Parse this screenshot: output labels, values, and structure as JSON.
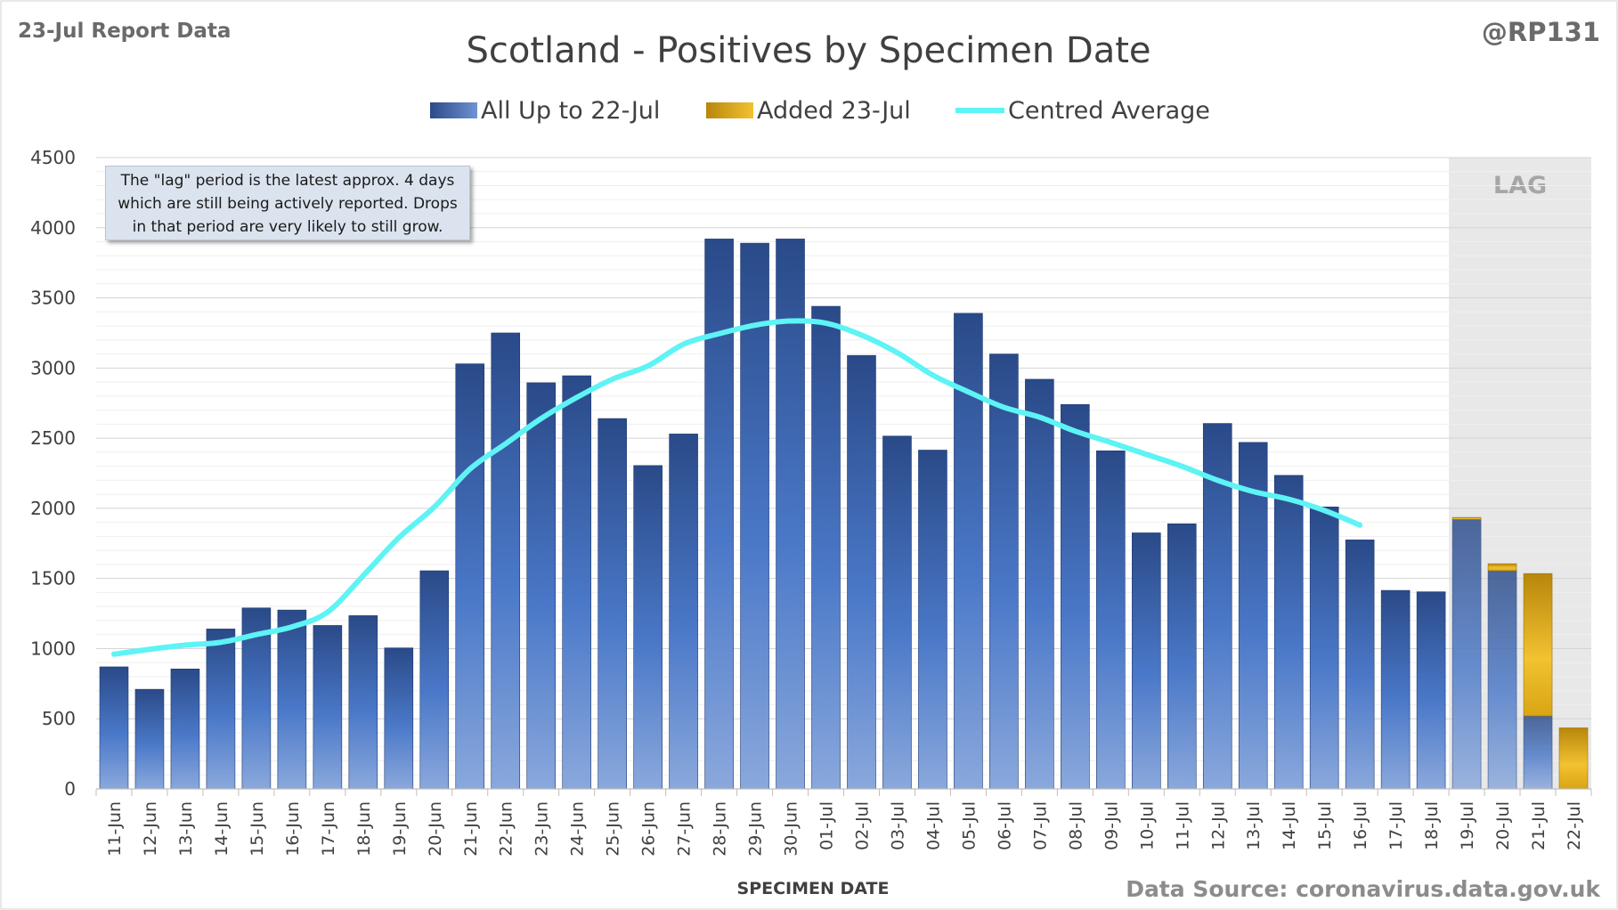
{
  "header": {
    "report_label": "23-Jul Report Data",
    "author": "@RP131"
  },
  "footer": {
    "source": "Data Source: coronavirus.data.gov.uk"
  },
  "annotation": {
    "lines": [
      "The \"lag\" period is the latest approx. 4 days",
      "which are still being actively reported.  Drops",
      "in that period are very likely to still grow."
    ]
  },
  "chart_data": {
    "type": "bar",
    "stacked": true,
    "title": "Scotland - Positives by Specimen Date",
    "xlabel": "SPECIMEN DATE",
    "ylabel": "",
    "ylim": [
      0,
      4500
    ],
    "yticks": [
      0,
      500,
      1000,
      1500,
      2000,
      2500,
      3000,
      3500,
      4000,
      4500
    ],
    "grid": true,
    "legend_position": "top",
    "lag_label": "LAG",
    "lag_categories": [
      "19-Jul",
      "20-Jul",
      "21-Jul",
      "22-Jul"
    ],
    "categories": [
      "11-Jun",
      "12-Jun",
      "13-Jun",
      "14-Jun",
      "15-Jun",
      "16-Jun",
      "17-Jun",
      "18-Jun",
      "19-Jun",
      "20-Jun",
      "21-Jun",
      "22-Jun",
      "23-Jun",
      "24-Jun",
      "25-Jun",
      "26-Jun",
      "27-Jun",
      "28-Jun",
      "29-Jun",
      "30-Jun",
      "01-Jul",
      "02-Jul",
      "03-Jul",
      "04-Jul",
      "05-Jul",
      "06-Jul",
      "07-Jul",
      "08-Jul",
      "09-Jul",
      "10-Jul",
      "11-Jul",
      "12-Jul",
      "13-Jul",
      "14-Jul",
      "15-Jul",
      "16-Jul",
      "17-Jul",
      "18-Jul",
      "19-Jul",
      "20-Jul",
      "21-Jul",
      "22-Jul"
    ],
    "series": [
      {
        "name": "All Up to 22-Jul",
        "color": "#2e4f8f",
        "values": [
          870,
          710,
          855,
          1140,
          1290,
          1275,
          1165,
          1235,
          1005,
          1555,
          3030,
          3250,
          2895,
          2945,
          2640,
          2305,
          2530,
          3920,
          3890,
          3920,
          3440,
          3090,
          2515,
          2415,
          3390,
          3100,
          2920,
          2740,
          2410,
          1825,
          1890,
          2605,
          2470,
          2235,
          2010,
          1775,
          1415,
          1405,
          1920,
          1555,
          520,
          0
        ]
      },
      {
        "name": "Added 23-Jul",
        "color": "#e6b325",
        "values": [
          0,
          0,
          0,
          0,
          0,
          0,
          0,
          0,
          0,
          0,
          0,
          0,
          0,
          0,
          0,
          0,
          0,
          0,
          0,
          0,
          0,
          0,
          0,
          0,
          0,
          0,
          0,
          0,
          0,
          0,
          0,
          0,
          0,
          0,
          0,
          0,
          0,
          0,
          15,
          50,
          1015,
          435
        ]
      },
      {
        "name": "Centred Average",
        "type": "line",
        "color": "#5ef3f5",
        "values": [
          960,
          995,
          1025,
          1045,
          1100,
          1155,
          1260,
          1520,
          1790,
          2010,
          2280,
          2460,
          2640,
          2790,
          2920,
          3015,
          3170,
          3245,
          3305,
          3335,
          3320,
          3235,
          3110,
          2950,
          2830,
          2720,
          2650,
          2550,
          2470,
          2385,
          2300,
          2200,
          2120,
          2065,
          1985,
          1880,
          null,
          null,
          null,
          null,
          null,
          null
        ]
      }
    ]
  }
}
